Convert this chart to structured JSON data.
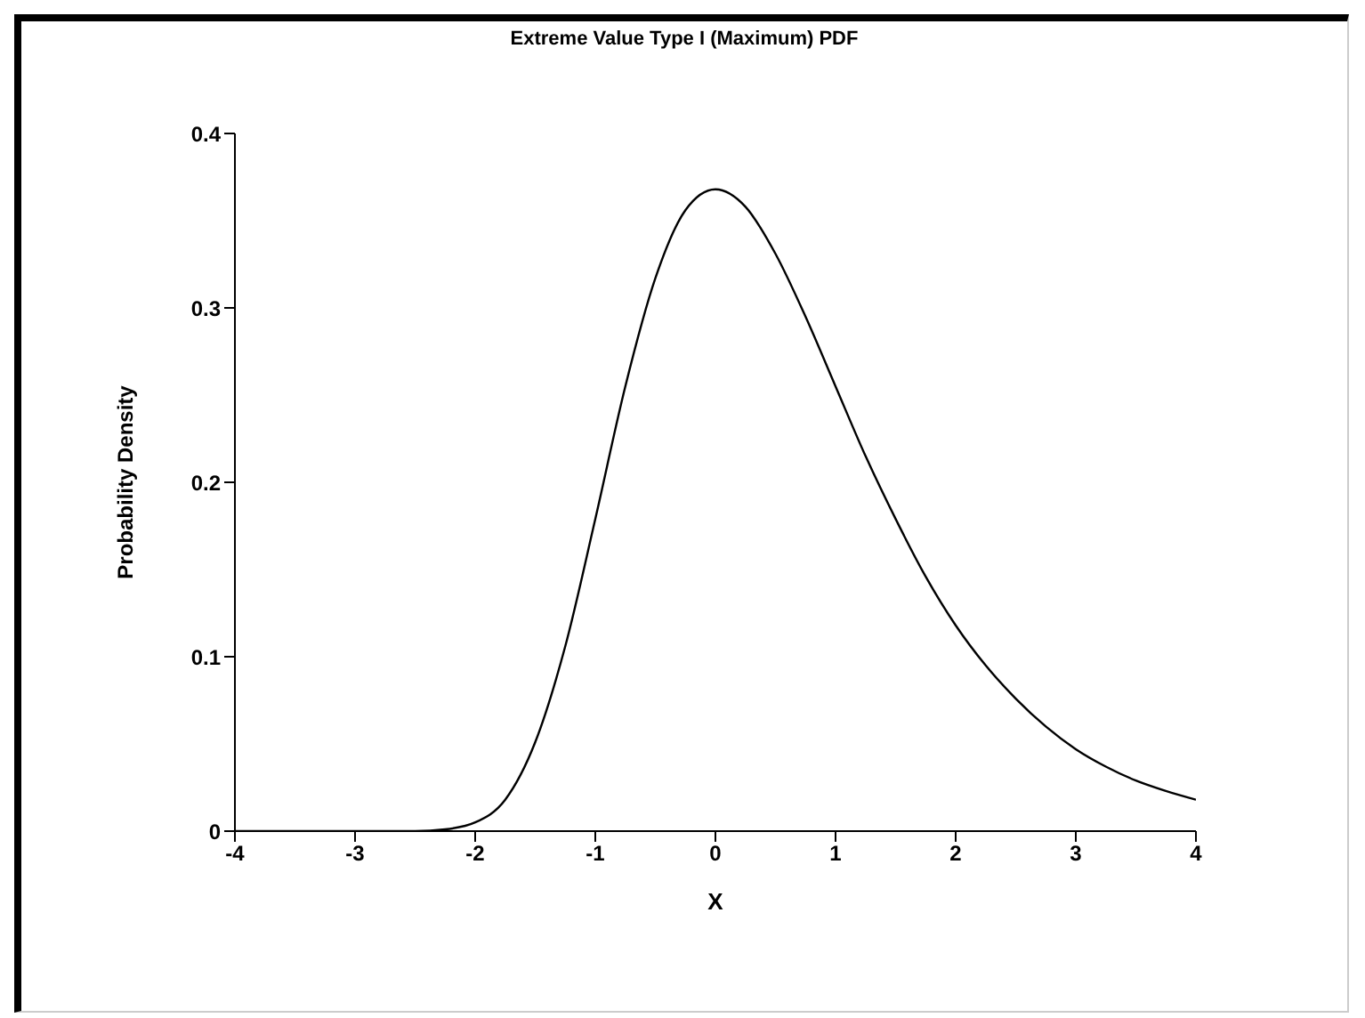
{
  "chart_data": {
    "type": "line",
    "title": "Extreme Value Type I (Maximum) PDF",
    "xlabel": "X",
    "ylabel": "Probability Density",
    "x": [
      -4,
      -3.5,
      -3,
      -2.75,
      -2.5,
      -2.25,
      -2,
      -1.75,
      -1.5,
      -1.25,
      -1,
      -0.75,
      -0.5,
      -0.25,
      0,
      0.25,
      0.5,
      0.75,
      1,
      1.25,
      1.5,
      1.75,
      2,
      2.25,
      2.5,
      2.75,
      3,
      3.25,
      3.5,
      3.75,
      4
    ],
    "series": [
      {
        "color": "#000000",
        "values": [
          0,
          0,
          0,
          0,
          0,
          0.001,
          0.005,
          0.018,
          0.051,
          0.106,
          0.179,
          0.255,
          0.317,
          0.356,
          0.368,
          0.358,
          0.331,
          0.295,
          0.255,
          0.215,
          0.179,
          0.146,
          0.118,
          0.095,
          0.076,
          0.06,
          0.047,
          0.037,
          0.029,
          0.023,
          0.018
        ]
      }
    ],
    "xlim": [
      -4,
      4
    ],
    "xticks": [
      -4,
      -3,
      -2,
      -1,
      0,
      1,
      2,
      3,
      4
    ],
    "ylim": [
      0,
      0.4
    ],
    "yticks": [
      0,
      0.1,
      0.2,
      0.3,
      0.4
    ],
    "grid": false,
    "legend": false,
    "marker": "none",
    "line_style": "solid"
  }
}
